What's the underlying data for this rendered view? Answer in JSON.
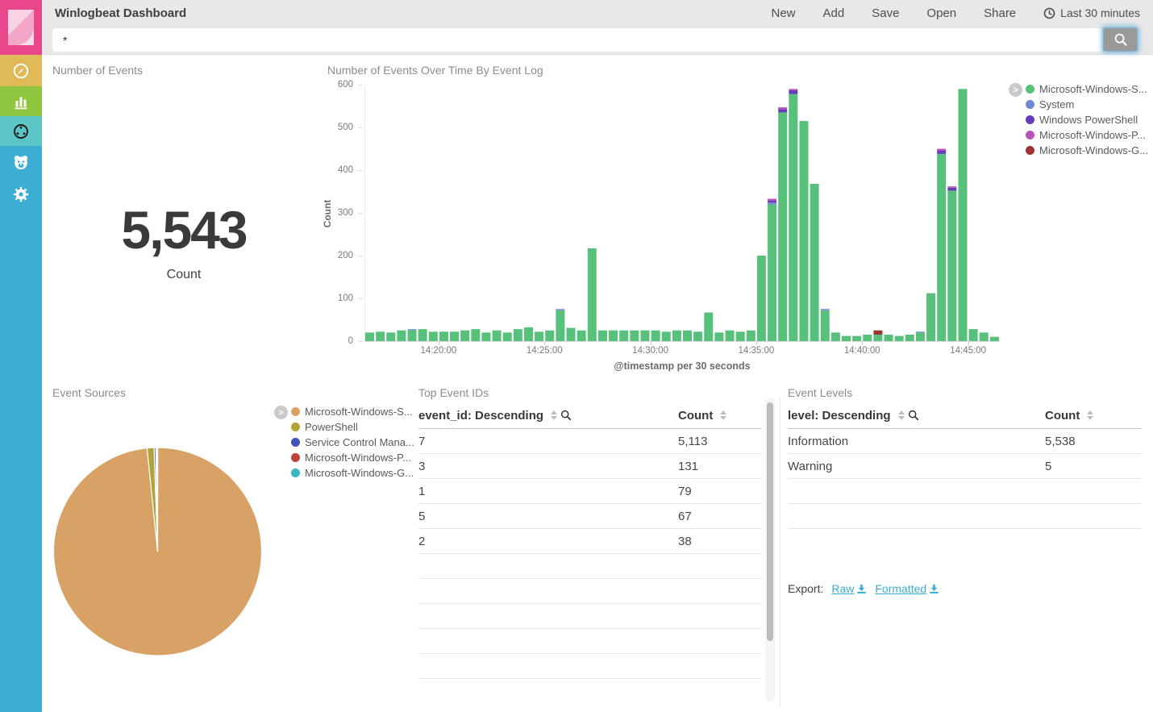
{
  "colors": {
    "brand_pink": "#e8478b",
    "sidebar_blue": "#3caed3",
    "discover_yellow": "#e0ba58",
    "visualize_green": "#90c53e",
    "dashboard_teal": "#5cc5c5",
    "link_teal": "#3caed2"
  },
  "sidebar": {
    "icons": [
      "kibana-logo",
      "discover-compass",
      "visualize-bar-chart",
      "dashboard-gauge",
      "beats-bear",
      "settings-gear"
    ],
    "active": "dashboard-gauge"
  },
  "header": {
    "title": "Winlogbeat Dashboard",
    "menu": [
      "New",
      "Add",
      "Save",
      "Open",
      "Share"
    ],
    "time_range": "Last 30 minutes"
  },
  "search": {
    "query": "*"
  },
  "chart_data": {
    "metric": {
      "type": "metric",
      "title": "Number of Events",
      "value": "5,543",
      "label": "Count"
    },
    "histogram": {
      "type": "bar",
      "stacked": true,
      "title": "Number of Events Over Time By Event Log",
      "ylabel": "Count",
      "xlabel": "@timestamp per 30 seconds",
      "ylim": [
        0,
        600
      ],
      "yticks": [
        0,
        100,
        200,
        300,
        400,
        500,
        600
      ],
      "legend_position": "right",
      "x": [
        "14:16:30",
        "14:17:00",
        "14:17:30",
        "14:18:00",
        "14:18:30",
        "14:19:00",
        "14:19:30",
        "14:20:00",
        "14:20:30",
        "14:21:00",
        "14:21:30",
        "14:22:00",
        "14:22:30",
        "14:23:00",
        "14:23:30",
        "14:24:00",
        "14:24:30",
        "14:25:00",
        "14:25:30",
        "14:26:00",
        "14:26:30",
        "14:27:00",
        "14:27:30",
        "14:28:00",
        "14:28:30",
        "14:29:00",
        "14:29:30",
        "14:30:00",
        "14:30:30",
        "14:31:00",
        "14:31:30",
        "14:32:00",
        "14:32:30",
        "14:33:00",
        "14:33:30",
        "14:34:00",
        "14:34:30",
        "14:35:00",
        "14:35:30",
        "14:36:00",
        "14:36:30",
        "14:37:00",
        "14:37:30",
        "14:38:00",
        "14:38:30",
        "14:39:00",
        "14:39:30",
        "14:40:00",
        "14:40:30",
        "14:41:00",
        "14:41:30",
        "14:42:00",
        "14:42:30",
        "14:43:00",
        "14:43:30",
        "14:44:00",
        "14:44:30",
        "14:45:00",
        "14:45:30",
        "14:46:00"
      ],
      "xticks": [
        {
          "i": 7,
          "label": "14:20:00"
        },
        {
          "i": 17,
          "label": "14:25:00"
        },
        {
          "i": 27,
          "label": "14:30:00"
        },
        {
          "i": 37,
          "label": "14:35:00"
        },
        {
          "i": 47,
          "label": "14:40:00"
        },
        {
          "i": 57,
          "label": "14:45:00"
        }
      ],
      "series": [
        {
          "name": "Microsoft-Windows-S...",
          "color": "#57c17b",
          "values": [
            20,
            22,
            20,
            25,
            26,
            28,
            22,
            22,
            22,
            25,
            28,
            20,
            25,
            20,
            28,
            32,
            22,
            25,
            72,
            31,
            25,
            217,
            25,
            25,
            25,
            25,
            25,
            25,
            22,
            25,
            25,
            22,
            67,
            20,
            25,
            22,
            25,
            200,
            320,
            535,
            578,
            515,
            368,
            72,
            20,
            12,
            12,
            15,
            15,
            15,
            12,
            15,
            20,
            112,
            438,
            352,
            590,
            28,
            20,
            10
          ]
        },
        {
          "name": "System",
          "color": "#6f87d8",
          "values": [
            0,
            0,
            0,
            0,
            2,
            0,
            0,
            0,
            0,
            0,
            0,
            0,
            0,
            0,
            0,
            0,
            0,
            0,
            3,
            0,
            0,
            0,
            0,
            0,
            0,
            0,
            0,
            0,
            0,
            0,
            0,
            0,
            0,
            0,
            0,
            0,
            0,
            0,
            4,
            0,
            0,
            0,
            0,
            3,
            0,
            0,
            0,
            0,
            0,
            0,
            0,
            0,
            2,
            0,
            0,
            0,
            0,
            0,
            0,
            0
          ]
        },
        {
          "name": "Windows PowerShell",
          "color": "#663db8",
          "values": [
            0,
            0,
            0,
            0,
            0,
            0,
            0,
            0,
            0,
            0,
            0,
            0,
            0,
            0,
            0,
            0,
            0,
            0,
            0,
            0,
            0,
            0,
            0,
            0,
            0,
            0,
            0,
            0,
            0,
            0,
            0,
            0,
            0,
            0,
            0,
            0,
            0,
            0,
            5,
            8,
            9,
            0,
            0,
            0,
            0,
            0,
            0,
            0,
            0,
            0,
            0,
            0,
            0,
            0,
            8,
            7,
            0,
            0,
            0,
            0
          ]
        },
        {
          "name": "Microsoft-Windows-P...",
          "color": "#bc52bc",
          "values": [
            0,
            0,
            0,
            0,
            0,
            0,
            0,
            0,
            0,
            0,
            0,
            0,
            0,
            0,
            0,
            0,
            0,
            0,
            0,
            0,
            0,
            0,
            0,
            0,
            0,
            0,
            0,
            0,
            0,
            0,
            0,
            0,
            0,
            0,
            0,
            0,
            0,
            0,
            4,
            4,
            3,
            0,
            0,
            0,
            0,
            0,
            0,
            0,
            0,
            0,
            0,
            0,
            0,
            0,
            4,
            3,
            0,
            0,
            0,
            0
          ]
        },
        {
          "name": "Microsoft-Windows-G...",
          "color": "#9e3533",
          "values": [
            0,
            0,
            0,
            0,
            0,
            0,
            0,
            0,
            0,
            0,
            0,
            0,
            0,
            0,
            0,
            0,
            0,
            0,
            0,
            0,
            0,
            0,
            0,
            0,
            0,
            0,
            0,
            0,
            0,
            0,
            0,
            0,
            0,
            0,
            0,
            0,
            0,
            0,
            0,
            0,
            0,
            0,
            0,
            0,
            0,
            0,
            0,
            0,
            10,
            0,
            0,
            0,
            0,
            0,
            0,
            0,
            0,
            0,
            0,
            0
          ]
        }
      ]
    },
    "pie": {
      "type": "pie",
      "title": "Event Sources",
      "labels": [
        "Microsoft-Windows-S...",
        "PowerShell",
        "Service Control Mana...",
        "Microsoft-Windows-P...",
        "Microsoft-Windows-G..."
      ],
      "values": [
        5453,
        60,
        15,
        9,
        6
      ],
      "colors": [
        "#d8a266",
        "#b1a437",
        "#4053bf",
        "#bf4438",
        "#39b7c4"
      ],
      "legend_position": "right"
    },
    "top_event_ids": {
      "type": "table",
      "title": "Top Event IDs",
      "columns": [
        "event_id: Descending",
        "Count"
      ],
      "rows": [
        [
          "7",
          "5,113"
        ],
        [
          "3",
          "131"
        ],
        [
          "1",
          "79"
        ],
        [
          "5",
          "67"
        ],
        [
          "2",
          "38"
        ]
      ],
      "empty_rows": 5
    },
    "event_levels": {
      "type": "table",
      "title": "Event Levels",
      "columns": [
        "level: Descending",
        "Count"
      ],
      "rows": [
        [
          "Information",
          "5,538"
        ],
        [
          "Warning",
          "5"
        ]
      ],
      "empty_rows": 2,
      "export": {
        "label": "Export:",
        "raw": "Raw",
        "formatted": "Formatted"
      }
    }
  }
}
